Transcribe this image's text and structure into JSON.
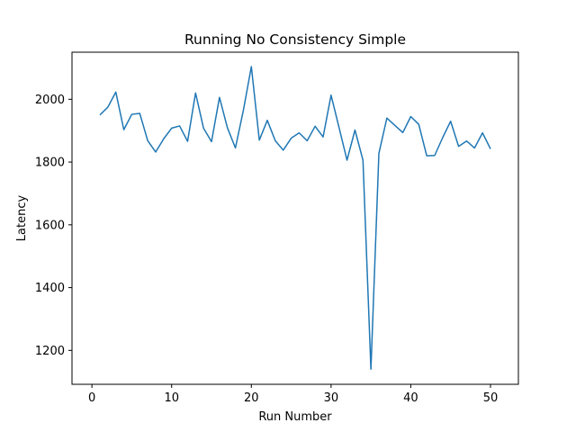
{
  "chart_data": {
    "type": "line",
    "title": "Running No Consistency Simple",
    "xlabel": "Run Number",
    "ylabel": "Latency",
    "xlim": [
      -2.5,
      53.5
    ],
    "ylim": [
      1092,
      2150
    ],
    "xticks": [
      0,
      10,
      20,
      30,
      40,
      50
    ],
    "yticks": [
      1200,
      1400,
      1600,
      1800,
      2000
    ],
    "grid": false,
    "line_color": "#1f77b4",
    "series": [
      {
        "x": [
          1,
          2,
          3,
          4,
          5,
          6,
          7,
          8,
          9,
          10,
          11,
          12,
          13,
          14,
          15,
          16,
          17,
          18,
          19,
          20,
          21,
          22,
          23,
          24,
          25,
          26,
          27,
          28,
          29,
          30,
          31,
          32,
          33,
          34,
          35,
          36,
          37,
          38,
          39,
          40,
          41,
          42,
          43,
          44,
          45,
          46,
          47,
          48,
          49,
          50
        ],
        "values": [
          1950,
          1975,
          2023,
          1903,
          1952,
          1955,
          1868,
          1832,
          1874,
          1908,
          1915,
          1866,
          2020,
          1908,
          1865,
          2006,
          1909,
          1845,
          1965,
          2104,
          1870,
          1933,
          1868,
          1838,
          1876,
          1893,
          1868,
          1914,
          1880,
          2013,
          1910,
          1806,
          1902,
          1806,
          1140,
          1828,
          1940,
          1917,
          1894,
          1945,
          1920,
          1820,
          1821,
          1878,
          1930,
          1850,
          1867,
          1845,
          1893,
          1842
        ]
      }
    ]
  }
}
